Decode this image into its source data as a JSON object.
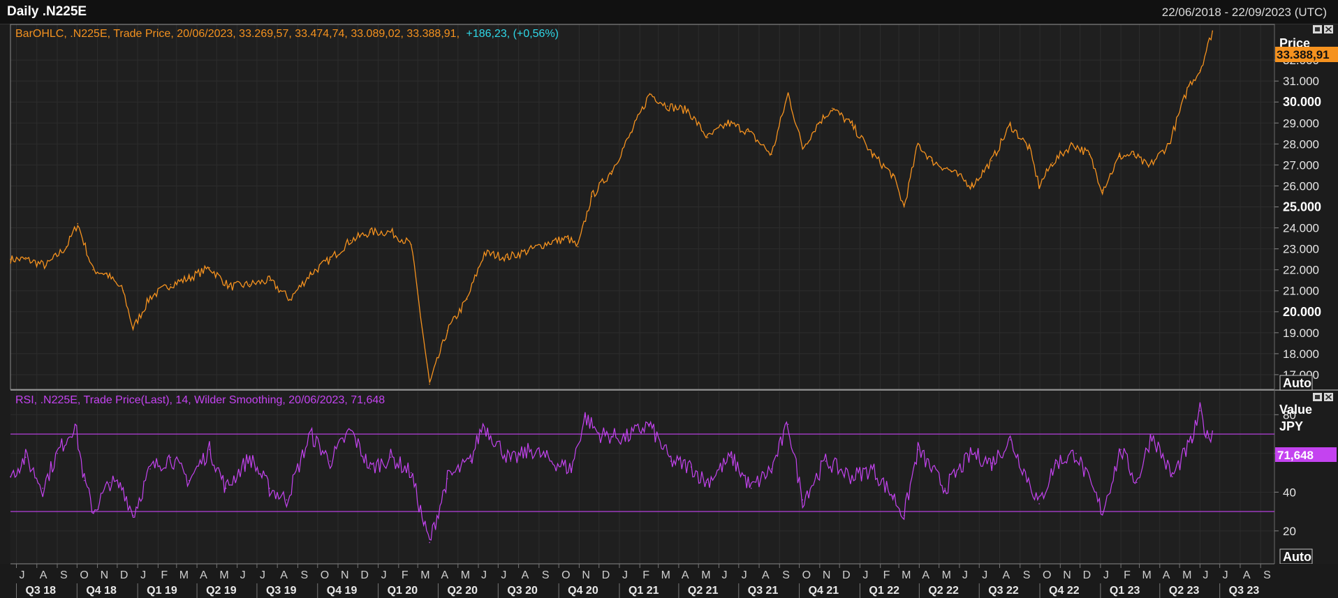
{
  "header": {
    "title": "Daily .N225E",
    "date_range": "22/06/2018 - 22/09/2023 (UTC)"
  },
  "price_panel": {
    "legend_prefix": "BarOHLC, .N225E, Trade Price, 20/06/2023, 33.269,57, 33.474,74, 33.089,02, 33.388,91,",
    "legend_change": "+186,23, (+0,56%)",
    "axis_title": "Price",
    "last_value": "33.388,91",
    "auto_label": "Auto",
    "ticks": [
      "17.000",
      "18.000",
      "19.000",
      "20.000",
      "21.000",
      "22.000",
      "23.000",
      "24.000",
      "25.000",
      "26.000",
      "27.000",
      "28.000",
      "29.000",
      "30.000",
      "31.000",
      "32.000"
    ],
    "bold_ticks": [
      "20.000",
      "25.000",
      "30.000"
    ]
  },
  "rsi_panel": {
    "legend": "RSI, .N225E, Trade Price(Last),  14, Wilder Smoothing, 20/06/2023, 71,648",
    "axis_title": "Value",
    "axis_unit": "JPY",
    "last_value": "71,648",
    "auto_label": "Auto",
    "ticks": [
      "20",
      "40",
      "60",
      "80"
    ]
  },
  "time_axis": {
    "months": [
      "J",
      "A",
      "S",
      "O",
      "N",
      "D",
      "J",
      "F",
      "M",
      "A",
      "M",
      "J",
      "J",
      "A",
      "S",
      "O",
      "N",
      "D",
      "J",
      "F",
      "M",
      "A",
      "M",
      "J",
      "J",
      "A",
      "S",
      "O",
      "N",
      "D",
      "J",
      "F",
      "M",
      "A",
      "M",
      "J",
      "J",
      "A",
      "S",
      "O",
      "N",
      "D",
      "J",
      "F",
      "M",
      "A",
      "M",
      "J",
      "J",
      "A",
      "S",
      "O",
      "N",
      "D",
      "J",
      "F",
      "M",
      "A",
      "M",
      "J",
      "J",
      "A",
      "S"
    ],
    "quarters": [
      "Q3 18",
      "Q4 18",
      "Q1 19",
      "Q2 19",
      "Q3 19",
      "Q4 19",
      "Q1 20",
      "Q2 20",
      "Q3 20",
      "Q4 20",
      "Q1 21",
      "Q2 21",
      "Q3 21",
      "Q4 21",
      "Q1 22",
      "Q2 22",
      "Q3 22",
      "Q4 22",
      "Q1 23",
      "Q2 23",
      "Q3 23"
    ]
  },
  "colors": {
    "background": "#1c1c1c",
    "grid": "#2d2d2d",
    "price_series": "#f5921f",
    "change_text": "#2fd8e8",
    "rsi_series": "#c443f0",
    "last_value_bg_price": "#f5921f",
    "last_value_bg_rsi": "#c443f0"
  },
  "chart_data": [
    {
      "type": "line",
      "title": "BarOHLC, .N225E, Trade Price",
      "ylabel": "Price",
      "ylim": [
        16300,
        33700
      ],
      "last": {
        "date": "20/06/2023",
        "open": 33269.57,
        "high": 33474.74,
        "low": 33089.02,
        "close": 33388.91,
        "change": 186.23,
        "change_pct": 0.56
      },
      "series": [
        {
          "name": ".N225E",
          "x": [
            "2018-06-22",
            "2018-07-15",
            "2018-08-15",
            "2018-09-15",
            "2018-10-02",
            "2018-10-25",
            "2018-11-15",
            "2018-12-10",
            "2018-12-25",
            "2019-01-20",
            "2019-02-20",
            "2019-03-20",
            "2019-04-20",
            "2019-05-20",
            "2019-06-20",
            "2019-07-20",
            "2019-08-20",
            "2019-09-20",
            "2019-10-20",
            "2019-11-20",
            "2019-12-20",
            "2020-01-20",
            "2020-02-20",
            "2020-03-19",
            "2020-04-15",
            "2020-05-15",
            "2020-06-10",
            "2020-07-15",
            "2020-08-15",
            "2020-09-15",
            "2020-10-15",
            "2020-10-30",
            "2020-11-20",
            "2020-12-20",
            "2021-01-20",
            "2021-02-16",
            "2021-03-15",
            "2021-04-15",
            "2021-05-15",
            "2021-06-15",
            "2021-07-15",
            "2021-08-20",
            "2021-09-14",
            "2021-10-06",
            "2021-10-30",
            "2021-11-20",
            "2021-12-20",
            "2022-01-20",
            "2022-02-20",
            "2022-03-09",
            "2022-03-30",
            "2022-04-20",
            "2022-05-20",
            "2022-06-20",
            "2022-07-20",
            "2022-08-17",
            "2022-09-15",
            "2022-09-30",
            "2022-10-20",
            "2022-11-20",
            "2022-12-15",
            "2023-01-04",
            "2023-01-30",
            "2023-02-20",
            "2023-03-15",
            "2023-04-15",
            "2023-05-15",
            "2023-06-01",
            "2023-06-20"
          ],
          "y": [
            22500,
            22500,
            22200,
            23100,
            24200,
            22000,
            21800,
            21000,
            19200,
            20700,
            21300,
            21600,
            22100,
            21200,
            21300,
            21500,
            20600,
            21800,
            22500,
            23400,
            23800,
            23800,
            23200,
            16550,
            19100,
            20600,
            22800,
            22600,
            22900,
            23300,
            23500,
            23100,
            25500,
            26700,
            28600,
            30400,
            29800,
            29600,
            28300,
            29000,
            28600,
            27500,
            30400,
            27800,
            29000,
            29700,
            28900,
            27500,
            26500,
            25000,
            28000,
            27200,
            26700,
            26000,
            27200,
            28900,
            27800,
            26000,
            27100,
            28000,
            27500,
            25800,
            27400,
            27500,
            26900,
            28000,
            30800,
            31500,
            33389
          ]
        }
      ]
    },
    {
      "type": "line",
      "title": "RSI, .N225E, Trade Price(Last), 14, Wilder Smoothing",
      "ylabel": "Value",
      "ylim": [
        3,
        92
      ],
      "reference_lines": [
        30,
        70
      ],
      "last": {
        "date": "20/06/2023",
        "value": 71.648
      },
      "series": [
        {
          "name": "RSI",
          "x": [
            "2018-06-22",
            "2018-07-15",
            "2018-08-10",
            "2018-09-01",
            "2018-09-28",
            "2018-10-12",
            "2018-10-26",
            "2018-11-20",
            "2018-12-10",
            "2018-12-25",
            "2019-01-20",
            "2019-02-20",
            "2019-03-20",
            "2019-04-20",
            "2019-05-15",
            "2019-06-20",
            "2019-07-20",
            "2019-08-15",
            "2019-09-20",
            "2019-10-20",
            "2019-11-20",
            "2019-12-20",
            "2020-01-20",
            "2020-02-20",
            "2020-03-10",
            "2020-03-19",
            "2020-04-15",
            "2020-05-20",
            "2020-06-08",
            "2020-07-20",
            "2020-08-20",
            "2020-09-20",
            "2020-10-20",
            "2020-11-10",
            "2020-12-01",
            "2021-01-10",
            "2021-02-15",
            "2021-03-20",
            "2021-04-20",
            "2021-05-13",
            "2021-06-20",
            "2021-07-20",
            "2021-08-20",
            "2021-09-14",
            "2021-10-06",
            "2021-11-10",
            "2021-12-20",
            "2022-01-20",
            "2022-02-20",
            "2022-03-09",
            "2022-03-30",
            "2022-05-10",
            "2022-06-20",
            "2022-07-20",
            "2022-08-17",
            "2022-09-30",
            "2022-10-25",
            "2022-11-25",
            "2023-01-04",
            "2023-02-01",
            "2023-02-25",
            "2023-03-20",
            "2023-04-20",
            "2023-05-20",
            "2023-06-01",
            "2023-06-12",
            "2023-06-20"
          ],
          "y": [
            48,
            58,
            42,
            60,
            75,
            46,
            30,
            45,
            42,
            28,
            52,
            58,
            46,
            62,
            42,
            58,
            42,
            36,
            70,
            56,
            72,
            52,
            58,
            50,
            24,
            14,
            47,
            56,
            75,
            56,
            62,
            56,
            52,
            79,
            70,
            68,
            75,
            56,
            53,
            45,
            58,
            42,
            52,
            75,
            36,
            56,
            48,
            52,
            38,
            28,
            62,
            42,
            60,
            55,
            67,
            34,
            55,
            60,
            30,
            62,
            45,
            70,
            48,
            67,
            82,
            68,
            71.6
          ]
        }
      ]
    }
  ]
}
